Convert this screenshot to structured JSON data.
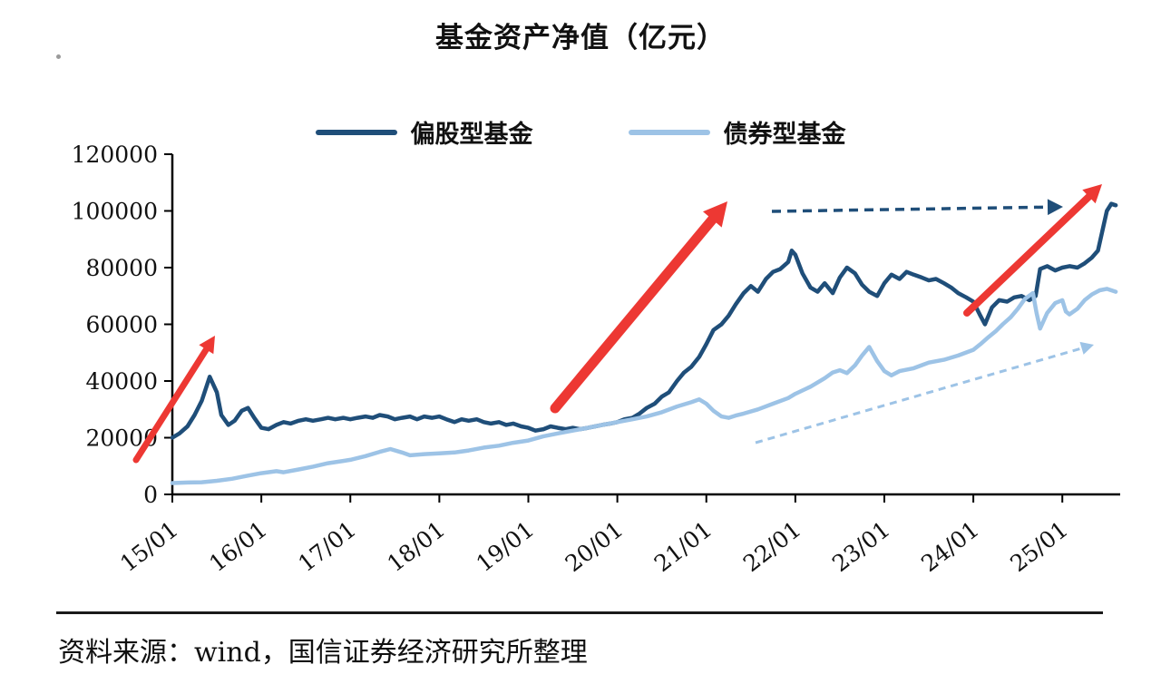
{
  "title": "基金资产净值（亿元）",
  "source": "资料来源：wind，国信证券经济研究所整理",
  "colors": {
    "equity": "#1f4e79",
    "bond": "#9dc3e6",
    "arrow_red": "#ed3833",
    "axis": "#000000",
    "text": "#111111"
  },
  "chart_data": {
    "type": "line",
    "title": "基金资产净值（亿元）",
    "ylabel": "",
    "xlabel": "",
    "ylim": [
      0,
      120000
    ],
    "y_ticks": [
      0,
      20000,
      40000,
      60000,
      80000,
      100000,
      120000
    ],
    "x_range": [
      2015.0,
      2025.65
    ],
    "x_tick_years": [
      2015,
      2016,
      2017,
      2018,
      2019,
      2020,
      2021,
      2022,
      2023,
      2024,
      2025
    ],
    "x_tick_labels": [
      "15/01",
      "16/01",
      "17/01",
      "18/01",
      "19/01",
      "20/01",
      "21/01",
      "22/01",
      "23/01",
      "24/01",
      "25/01"
    ],
    "grid": false,
    "legend_position": "top-center",
    "legend": [
      {
        "name": "偏股型基金",
        "color": "#1f4e79"
      },
      {
        "name": "债券型基金",
        "color": "#9dc3e6"
      }
    ],
    "series": [
      {
        "key": "equity",
        "name": "偏股型基金",
        "color": "#1f4e79",
        "points": [
          [
            2015.0,
            20000
          ],
          [
            2015.08,
            21500
          ],
          [
            2015.17,
            24000
          ],
          [
            2015.25,
            28000
          ],
          [
            2015.33,
            33000
          ],
          [
            2015.42,
            41500
          ],
          [
            2015.5,
            36000
          ],
          [
            2015.55,
            28000
          ],
          [
            2015.63,
            24500
          ],
          [
            2015.7,
            26000
          ],
          [
            2015.78,
            29500
          ],
          [
            2015.85,
            30500
          ],
          [
            2015.92,
            27000
          ],
          [
            2016.0,
            23500
          ],
          [
            2016.08,
            23000
          ],
          [
            2016.17,
            24500
          ],
          [
            2016.25,
            25500
          ],
          [
            2016.33,
            25000
          ],
          [
            2016.42,
            26000
          ],
          [
            2016.5,
            26500
          ],
          [
            2016.58,
            26000
          ],
          [
            2016.67,
            26500
          ],
          [
            2016.75,
            27000
          ],
          [
            2016.83,
            26500
          ],
          [
            2016.92,
            27000
          ],
          [
            2017.0,
            26500
          ],
          [
            2017.08,
            27000
          ],
          [
            2017.17,
            27500
          ],
          [
            2017.25,
            27000
          ],
          [
            2017.33,
            28000
          ],
          [
            2017.42,
            27500
          ],
          [
            2017.5,
            26500
          ],
          [
            2017.58,
            27000
          ],
          [
            2017.67,
            27500
          ],
          [
            2017.75,
            26500
          ],
          [
            2017.83,
            27500
          ],
          [
            2017.92,
            27000
          ],
          [
            2018.0,
            27500
          ],
          [
            2018.08,
            26500
          ],
          [
            2018.17,
            25500
          ],
          [
            2018.25,
            26500
          ],
          [
            2018.33,
            26000
          ],
          [
            2018.42,
            26500
          ],
          [
            2018.5,
            25500
          ],
          [
            2018.58,
            25000
          ],
          [
            2018.67,
            25500
          ],
          [
            2018.75,
            24500
          ],
          [
            2018.83,
            25000
          ],
          [
            2018.92,
            24000
          ],
          [
            2019.0,
            23500
          ],
          [
            2019.08,
            22500
          ],
          [
            2019.17,
            23000
          ],
          [
            2019.25,
            24000
          ],
          [
            2019.33,
            23500
          ],
          [
            2019.42,
            23000
          ],
          [
            2019.5,
            23500
          ],
          [
            2019.58,
            23000
          ],
          [
            2019.67,
            23500
          ],
          [
            2019.75,
            24000
          ],
          [
            2019.83,
            24500
          ],
          [
            2019.92,
            25000
          ],
          [
            2020.0,
            25500
          ],
          [
            2020.08,
            26500
          ],
          [
            2020.17,
            27000
          ],
          [
            2020.25,
            28500
          ],
          [
            2020.33,
            30500
          ],
          [
            2020.42,
            32000
          ],
          [
            2020.5,
            34500
          ],
          [
            2020.58,
            36000
          ],
          [
            2020.67,
            40000
          ],
          [
            2020.75,
            43000
          ],
          [
            2020.83,
            45000
          ],
          [
            2020.92,
            48500
          ],
          [
            2021.0,
            53000
          ],
          [
            2021.08,
            58000
          ],
          [
            2021.17,
            60000
          ],
          [
            2021.25,
            63000
          ],
          [
            2021.33,
            67000
          ],
          [
            2021.42,
            71000
          ],
          [
            2021.5,
            73500
          ],
          [
            2021.58,
            71500
          ],
          [
            2021.67,
            76000
          ],
          [
            2021.75,
            78500
          ],
          [
            2021.83,
            79500
          ],
          [
            2021.92,
            82000
          ],
          [
            2021.96,
            86000
          ],
          [
            2022.0,
            84500
          ],
          [
            2022.08,
            78000
          ],
          [
            2022.17,
            73000
          ],
          [
            2022.25,
            71500
          ],
          [
            2022.33,
            74500
          ],
          [
            2022.42,
            71000
          ],
          [
            2022.5,
            76500
          ],
          [
            2022.58,
            80000
          ],
          [
            2022.67,
            78000
          ],
          [
            2022.75,
            74000
          ],
          [
            2022.83,
            71500
          ],
          [
            2022.92,
            70000
          ],
          [
            2023.0,
            74500
          ],
          [
            2023.08,
            77500
          ],
          [
            2023.17,
            76000
          ],
          [
            2023.25,
            78500
          ],
          [
            2023.33,
            77500
          ],
          [
            2023.42,
            76500
          ],
          [
            2023.5,
            75500
          ],
          [
            2023.58,
            76000
          ],
          [
            2023.67,
            74500
          ],
          [
            2023.75,
            73000
          ],
          [
            2023.83,
            71000
          ],
          [
            2023.92,
            69500
          ],
          [
            2024.0,
            68000
          ],
          [
            2024.08,
            63000
          ],
          [
            2024.13,
            60000
          ],
          [
            2024.21,
            66000
          ],
          [
            2024.29,
            68500
          ],
          [
            2024.38,
            68000
          ],
          [
            2024.46,
            69500
          ],
          [
            2024.54,
            70000
          ],
          [
            2024.63,
            68500
          ],
          [
            2024.7,
            70000
          ],
          [
            2024.75,
            79500
          ],
          [
            2024.83,
            80500
          ],
          [
            2024.92,
            79000
          ],
          [
            2025.0,
            80000
          ],
          [
            2025.08,
            80500
          ],
          [
            2025.17,
            80000
          ],
          [
            2025.25,
            81500
          ],
          [
            2025.33,
            83500
          ],
          [
            2025.4,
            86000
          ],
          [
            2025.45,
            93000
          ],
          [
            2025.5,
            100000
          ],
          [
            2025.55,
            102500
          ],
          [
            2025.6,
            102000
          ]
        ]
      },
      {
        "key": "bond",
        "name": "债券型基金",
        "color": "#9dc3e6",
        "points": [
          [
            2015.0,
            4000
          ],
          [
            2015.17,
            4200
          ],
          [
            2015.33,
            4300
          ],
          [
            2015.5,
            4800
          ],
          [
            2015.67,
            5500
          ],
          [
            2015.83,
            6500
          ],
          [
            2016.0,
            7500
          ],
          [
            2016.17,
            8200
          ],
          [
            2016.25,
            7800
          ],
          [
            2016.42,
            8800
          ],
          [
            2016.58,
            9800
          ],
          [
            2016.75,
            11000
          ],
          [
            2016.92,
            11800
          ],
          [
            2017.0,
            12200
          ],
          [
            2017.17,
            13500
          ],
          [
            2017.33,
            15000
          ],
          [
            2017.45,
            16000
          ],
          [
            2017.58,
            14800
          ],
          [
            2017.67,
            13800
          ],
          [
            2017.83,
            14200
          ],
          [
            2018.0,
            14500
          ],
          [
            2018.17,
            14800
          ],
          [
            2018.33,
            15500
          ],
          [
            2018.5,
            16500
          ],
          [
            2018.67,
            17200
          ],
          [
            2018.83,
            18200
          ],
          [
            2019.0,
            19000
          ],
          [
            2019.17,
            20500
          ],
          [
            2019.33,
            21500
          ],
          [
            2019.5,
            22500
          ],
          [
            2019.67,
            23500
          ],
          [
            2019.83,
            24500
          ],
          [
            2020.0,
            25500
          ],
          [
            2020.17,
            26500
          ],
          [
            2020.33,
            27500
          ],
          [
            2020.5,
            29000
          ],
          [
            2020.67,
            31000
          ],
          [
            2020.83,
            32500
          ],
          [
            2020.92,
            33500
          ],
          [
            2021.0,
            32000
          ],
          [
            2021.08,
            29500
          ],
          [
            2021.17,
            27500
          ],
          [
            2021.25,
            27000
          ],
          [
            2021.33,
            27800
          ],
          [
            2021.42,
            28500
          ],
          [
            2021.58,
            30000
          ],
          [
            2021.75,
            32000
          ],
          [
            2021.92,
            34000
          ],
          [
            2022.0,
            35500
          ],
          [
            2022.17,
            38000
          ],
          [
            2022.33,
            41000
          ],
          [
            2022.42,
            43000
          ],
          [
            2022.5,
            43800
          ],
          [
            2022.58,
            42800
          ],
          [
            2022.67,
            45500
          ],
          [
            2022.75,
            49000
          ],
          [
            2022.83,
            52000
          ],
          [
            2022.92,
            47000
          ],
          [
            2023.0,
            43500
          ],
          [
            2023.08,
            42000
          ],
          [
            2023.17,
            43500
          ],
          [
            2023.33,
            44500
          ],
          [
            2023.5,
            46500
          ],
          [
            2023.67,
            47500
          ],
          [
            2023.83,
            49000
          ],
          [
            2024.0,
            51000
          ],
          [
            2024.08,
            53000
          ],
          [
            2024.17,
            55500
          ],
          [
            2024.25,
            57500
          ],
          [
            2024.33,
            60000
          ],
          [
            2024.42,
            62500
          ],
          [
            2024.5,
            65500
          ],
          [
            2024.58,
            69000
          ],
          [
            2024.67,
            71000
          ],
          [
            2024.71,
            64000
          ],
          [
            2024.75,
            58500
          ],
          [
            2024.83,
            64000
          ],
          [
            2024.92,
            67500
          ],
          [
            2025.0,
            68500
          ],
          [
            2025.04,
            64500
          ],
          [
            2025.08,
            63500
          ],
          [
            2025.17,
            65500
          ],
          [
            2025.25,
            68500
          ],
          [
            2025.33,
            70500
          ],
          [
            2025.42,
            72000
          ],
          [
            2025.5,
            72500
          ],
          [
            2025.6,
            71500
          ]
        ]
      }
    ],
    "annotations": [
      {
        "name": "red-arrow-2015-peak",
        "kind": "arrow",
        "style": "solid",
        "color": "#ed3833",
        "from": [
          150,
          507
        ],
        "to": [
          237,
          370
        ],
        "width": 7,
        "head": 18
      },
      {
        "name": "red-arrow-2020-rally",
        "kind": "arrow",
        "style": "solid",
        "color": "#ed3833",
        "from": [
          612,
          450
        ],
        "to": [
          802,
          222
        ],
        "width": 11,
        "head": 26
      },
      {
        "name": "red-arrow-2025-rally",
        "kind": "arrow",
        "style": "solid",
        "color": "#ed3833",
        "from": [
          1066,
          345
        ],
        "to": [
          1215,
          203
        ],
        "width": 8,
        "head": 20
      },
      {
        "name": "navy-dashed-plateau-arrow",
        "kind": "arrow",
        "style": "dashed",
        "dash": "10 7",
        "color": "#1f4e79",
        "from": [
          851,
          233
        ],
        "to": [
          1172,
          228
        ],
        "width": 3.5,
        "head": 17
      },
      {
        "name": "blue-dashed-trend-arrow",
        "kind": "arrow",
        "style": "dashed",
        "dash": "8 6",
        "color": "#9dc3e6",
        "from": [
          833,
          488
        ],
        "to": [
          1206,
          380
        ],
        "width": 3,
        "head": 14
      }
    ]
  }
}
